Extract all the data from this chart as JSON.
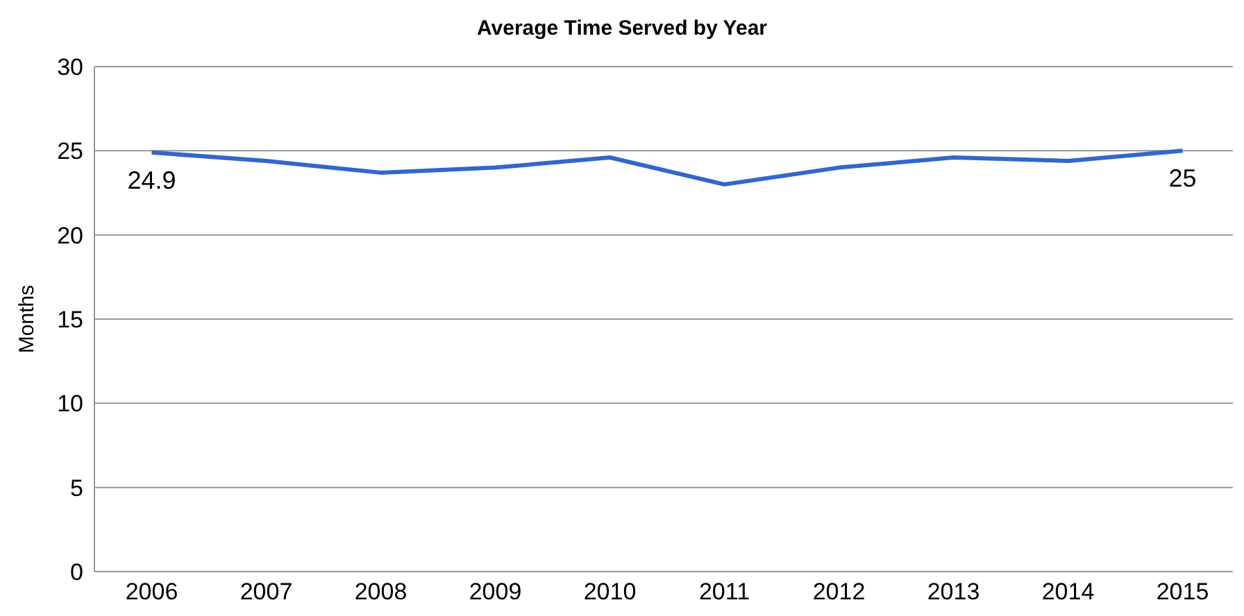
{
  "chart_data": {
    "type": "line",
    "title": "Average Time Served by Year",
    "ylabel": "Months",
    "categories": [
      "2006",
      "2007",
      "2008",
      "2009",
      "2010",
      "2011",
      "2012",
      "2013",
      "2014",
      "2015"
    ],
    "series": [
      {
        "color": "#3366cc",
        "values": [
          24.9,
          24.4,
          23.7,
          24.0,
          24.6,
          23.0,
          24.0,
          24.6,
          24.4,
          25
        ],
        "value_labels": [
          "24.9",
          null,
          null,
          null,
          null,
          null,
          null,
          null,
          null,
          "25"
        ]
      }
    ],
    "ylim": [
      0,
      30
    ],
    "yticks": [
      0,
      5,
      10,
      15,
      20,
      25,
      30
    ],
    "grid": "y",
    "legend": false,
    "marker": "none",
    "line_style": "solid"
  }
}
